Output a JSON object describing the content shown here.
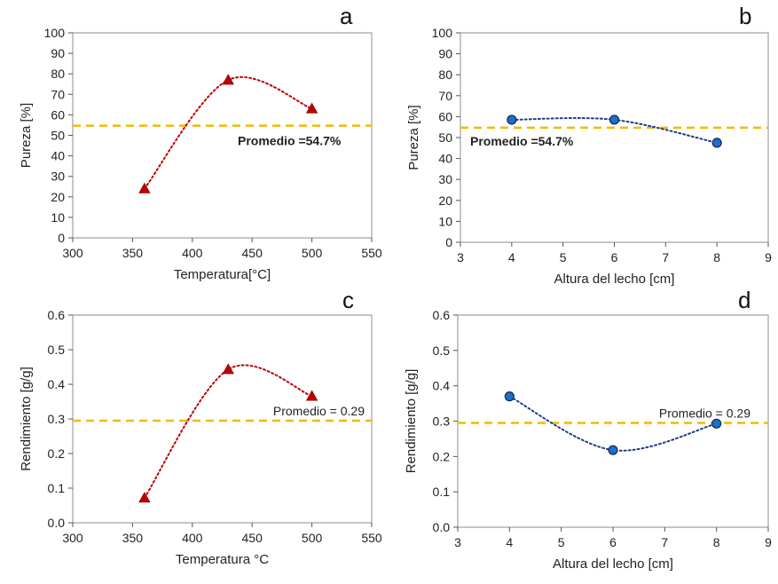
{
  "chart_data": [
    {
      "panel": "a",
      "type": "scatter",
      "xlabel": "Temperatura[°C]",
      "ylabel": "Pureza [%]",
      "xlim": [
        300,
        550
      ],
      "ylim": [
        0,
        100
      ],
      "xticks": [
        300,
        350,
        400,
        450,
        500,
        550
      ],
      "yticks": [
        0,
        10,
        20,
        30,
        40,
        50,
        60,
        70,
        80,
        90,
        100
      ],
      "x": [
        360,
        430,
        500
      ],
      "y": [
        24,
        77,
        63
      ],
      "marker": "triangle",
      "color": "#c00000",
      "average": 54.7,
      "average_label": "Promedio =54.7%",
      "average_color": "#f5b800",
      "grid": false
    },
    {
      "panel": "b",
      "type": "scatter",
      "xlabel": "Altura del lecho [cm]",
      "ylabel": "Pureza [%]",
      "xlim": [
        3,
        9
      ],
      "ylim": [
        0,
        100
      ],
      "xticks": [
        3,
        4,
        5,
        6,
        7,
        8,
        9
      ],
      "yticks": [
        0,
        10,
        20,
        30,
        40,
        50,
        60,
        70,
        80,
        90,
        100
      ],
      "x": [
        4,
        6,
        8
      ],
      "y": [
        58.5,
        58.5,
        47.5
      ],
      "marker": "circle",
      "color": "#1f6fc5",
      "average": 54.7,
      "average_label": "Promedio =54.7%",
      "average_color": "#f5b800",
      "grid": false
    },
    {
      "panel": "c",
      "type": "scatter",
      "xlabel": "Temperatura °C",
      "ylabel": "Rendimiento [g/g]",
      "xlim": [
        300,
        550
      ],
      "ylim": [
        0,
        0.6
      ],
      "xticks": [
        300,
        350,
        400,
        450,
        500,
        550
      ],
      "yticks": [
        0.0,
        0.1,
        0.2,
        0.3,
        0.4,
        0.5,
        0.6
      ],
      "ytick_labels": [
        "0.0",
        "0.1",
        "0.2",
        "0.3",
        "0.4",
        "0.5",
        "0.6"
      ],
      "x": [
        360,
        430,
        500
      ],
      "y": [
        0.072,
        0.443,
        0.366
      ],
      "marker": "triangle",
      "color": "#c00000",
      "average": 0.295,
      "average_label": "Promedio = 0.29",
      "average_color": "#f5b800",
      "grid": false
    },
    {
      "panel": "d",
      "type": "scatter",
      "xlabel": "Altura del lecho [cm]",
      "ylabel": "Rendimiento [g/g]",
      "xlim": [
        3,
        9
      ],
      "ylim": [
        0,
        0.6
      ],
      "xticks": [
        3,
        4,
        5,
        6,
        7,
        8,
        9
      ],
      "yticks": [
        0.0,
        0.1,
        0.2,
        0.3,
        0.4,
        0.5,
        0.6
      ],
      "ytick_labels": [
        "0.0",
        "0.1",
        "0.2",
        "0.3",
        "0.4",
        "0.5",
        "0.6"
      ],
      "x": [
        4,
        6,
        8
      ],
      "y": [
        0.37,
        0.218,
        0.293
      ],
      "marker": "circle",
      "color": "#1f6fc5",
      "average": 0.295,
      "average_label": "Promedio = 0.29",
      "average_color": "#f5b800",
      "grid": false
    }
  ]
}
